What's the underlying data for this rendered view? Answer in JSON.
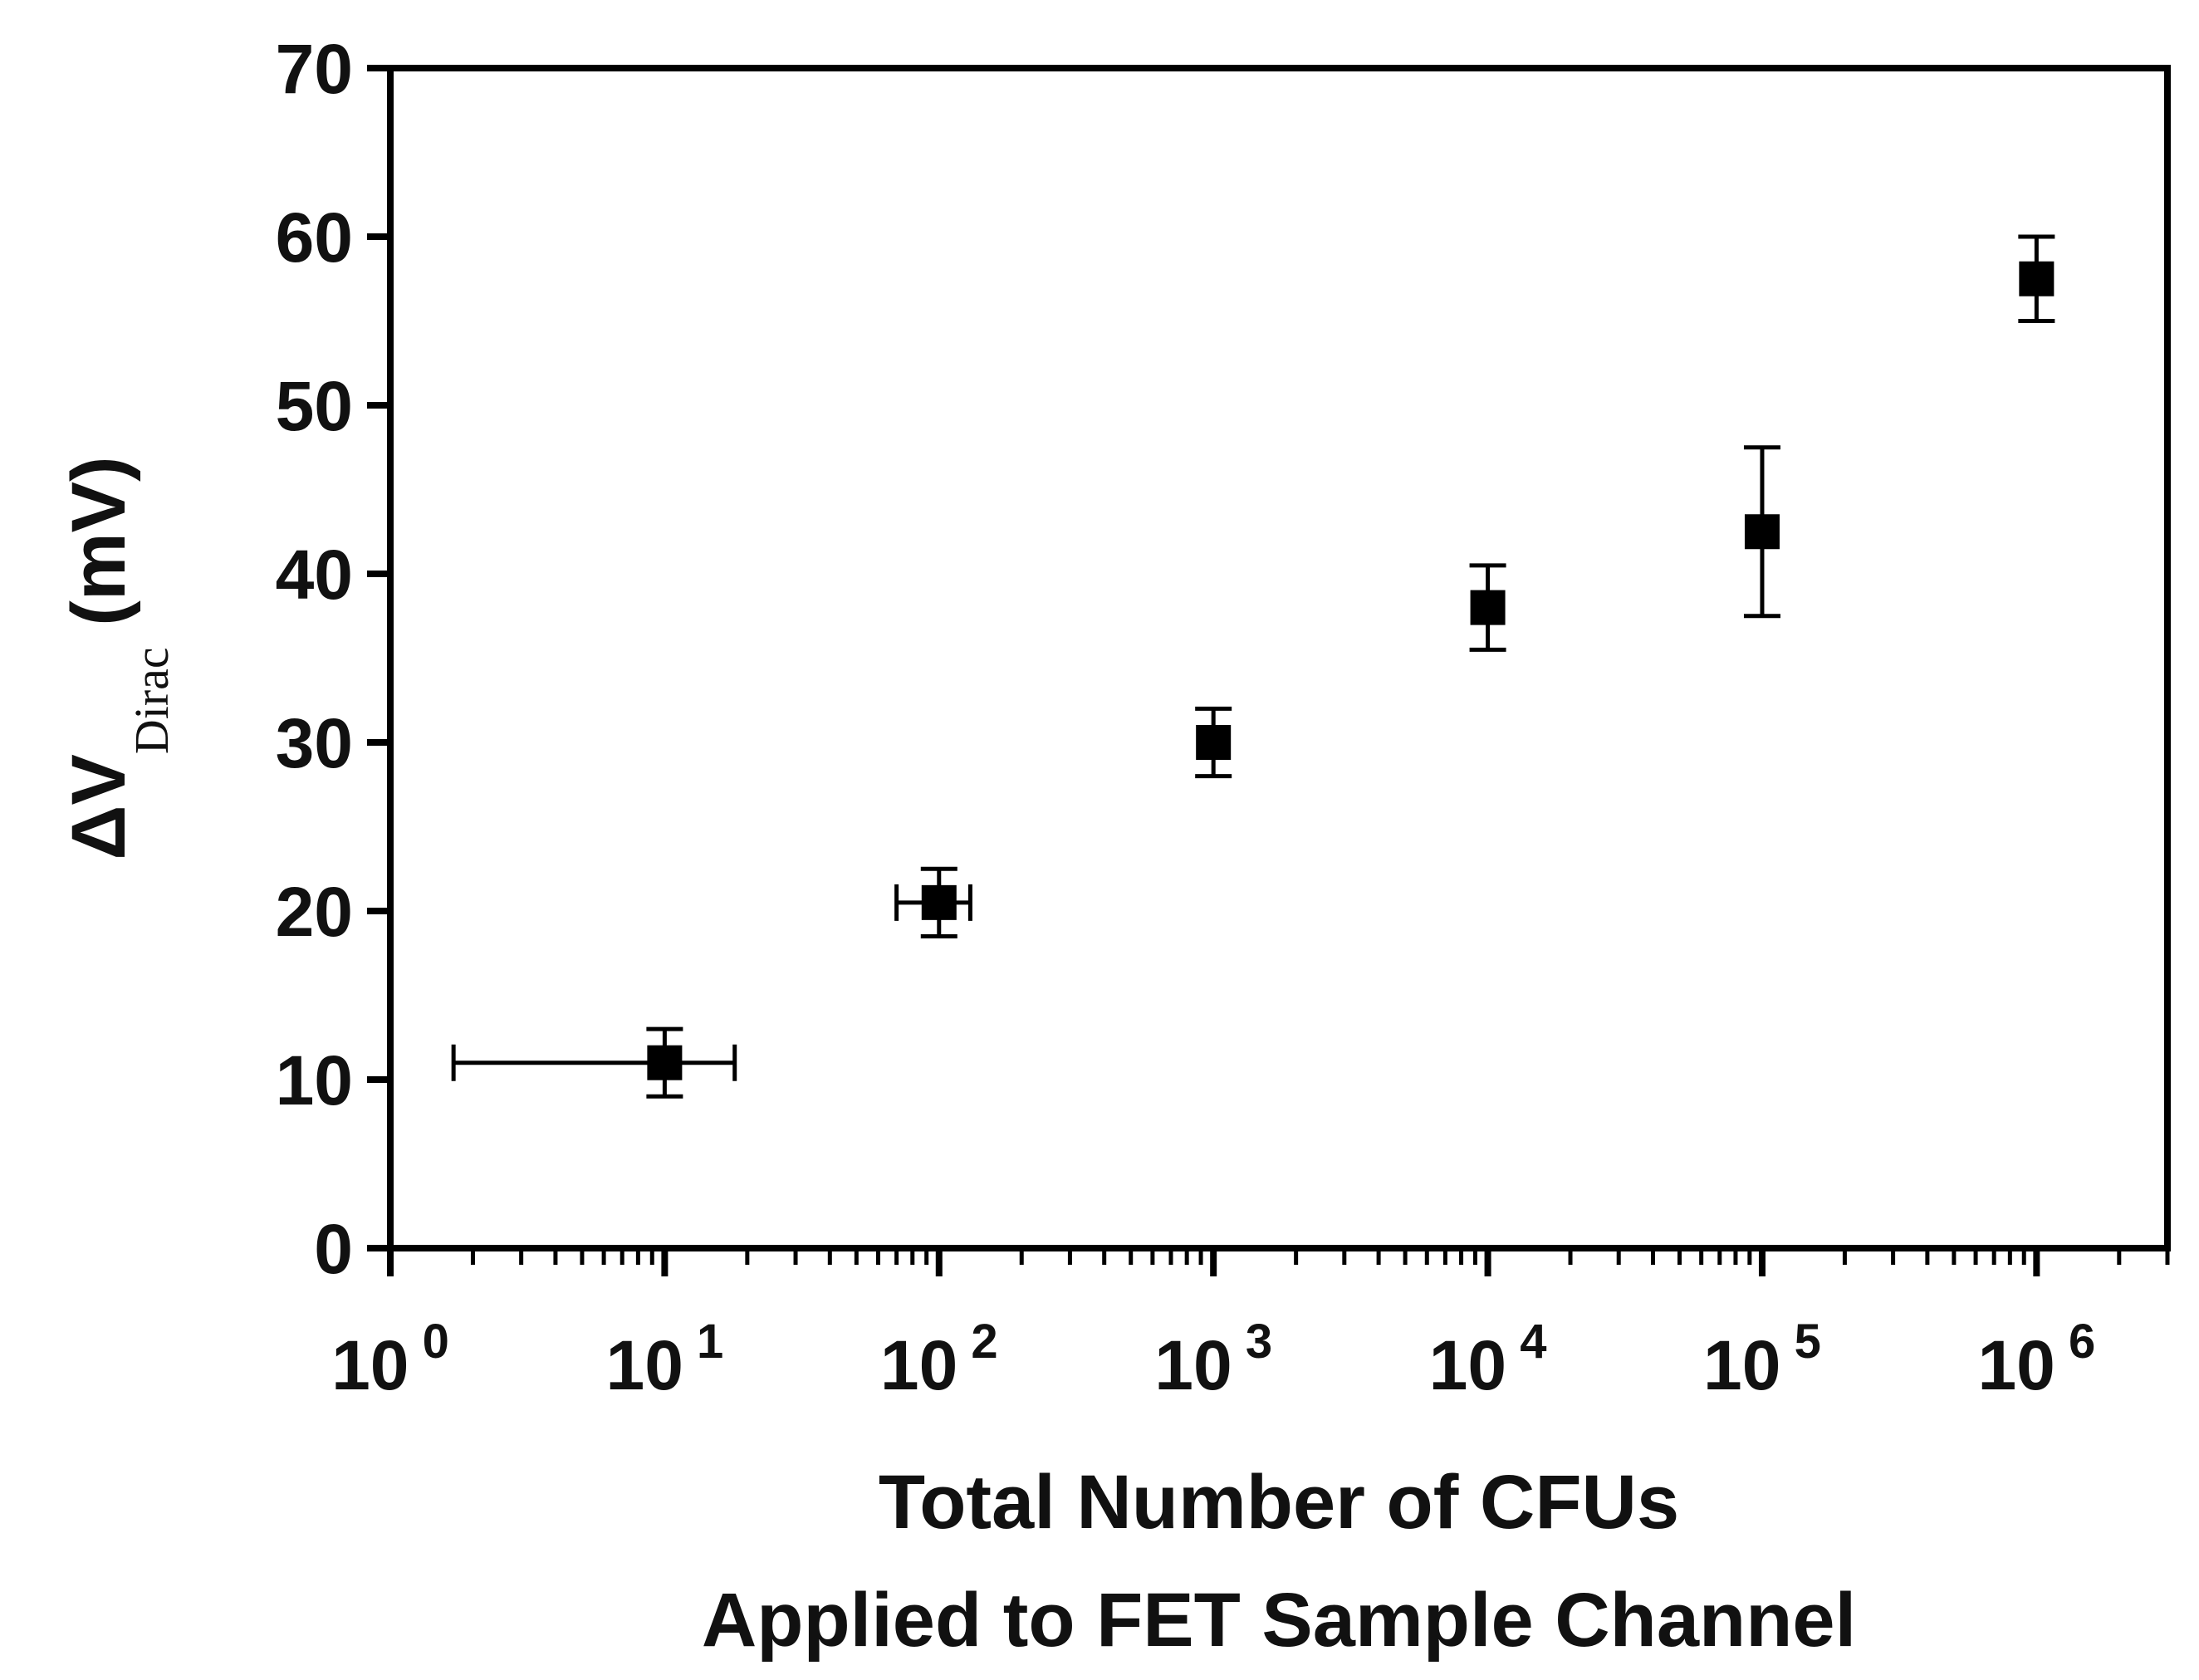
{
  "chart_data": {
    "type": "scatter",
    "title": "",
    "xlabel_lines": [
      "Total Number of CFUs",
      "Applied to FET Sample Channel"
    ],
    "ylabel": {
      "main": "ΔV",
      "subscript": "Dirac",
      "unit": "(mV)"
    },
    "xscale": "log",
    "xlim": [
      1,
      3000000
    ],
    "ylim": [
      0,
      70
    ],
    "yticks": [
      0,
      10,
      20,
      30,
      40,
      50,
      60,
      70
    ],
    "xticks": [
      {
        "value": 1,
        "base": "10",
        "exp": "0"
      },
      {
        "value": 10,
        "base": "10",
        "exp": "1"
      },
      {
        "value": 100,
        "base": "10",
        "exp": "2"
      },
      {
        "value": 1000,
        "base": "10",
        "exp": "3"
      },
      {
        "value": 10000,
        "base": "10",
        "exp": "4"
      },
      {
        "value": 100000,
        "base": "10",
        "exp": "5"
      },
      {
        "value": 1000000,
        "base": "10",
        "exp": "6"
      }
    ],
    "points": [
      {
        "x": 10,
        "y": 11,
        "yerr": 2,
        "xerr_low": 1.7,
        "xerr_high": 18
      },
      {
        "x": 100,
        "y": 20.5,
        "yerr": 2,
        "xerr_low": 70,
        "xerr_high": 130
      },
      {
        "x": 1000,
        "y": 30,
        "yerr": 2,
        "xerr_low": null,
        "xerr_high": null
      },
      {
        "x": 10000,
        "y": 38,
        "yerr": 2.5,
        "xerr_low": null,
        "xerr_high": null
      },
      {
        "x": 100000,
        "y": 42.5,
        "yerr": 5,
        "xerr_low": null,
        "xerr_high": null
      },
      {
        "x": 1000000,
        "y": 57.5,
        "yerr": 2.5,
        "xerr_low": null,
        "xerr_high": null
      }
    ],
    "marker": "square",
    "color": "#000000",
    "grid": false,
    "legend": "none"
  }
}
